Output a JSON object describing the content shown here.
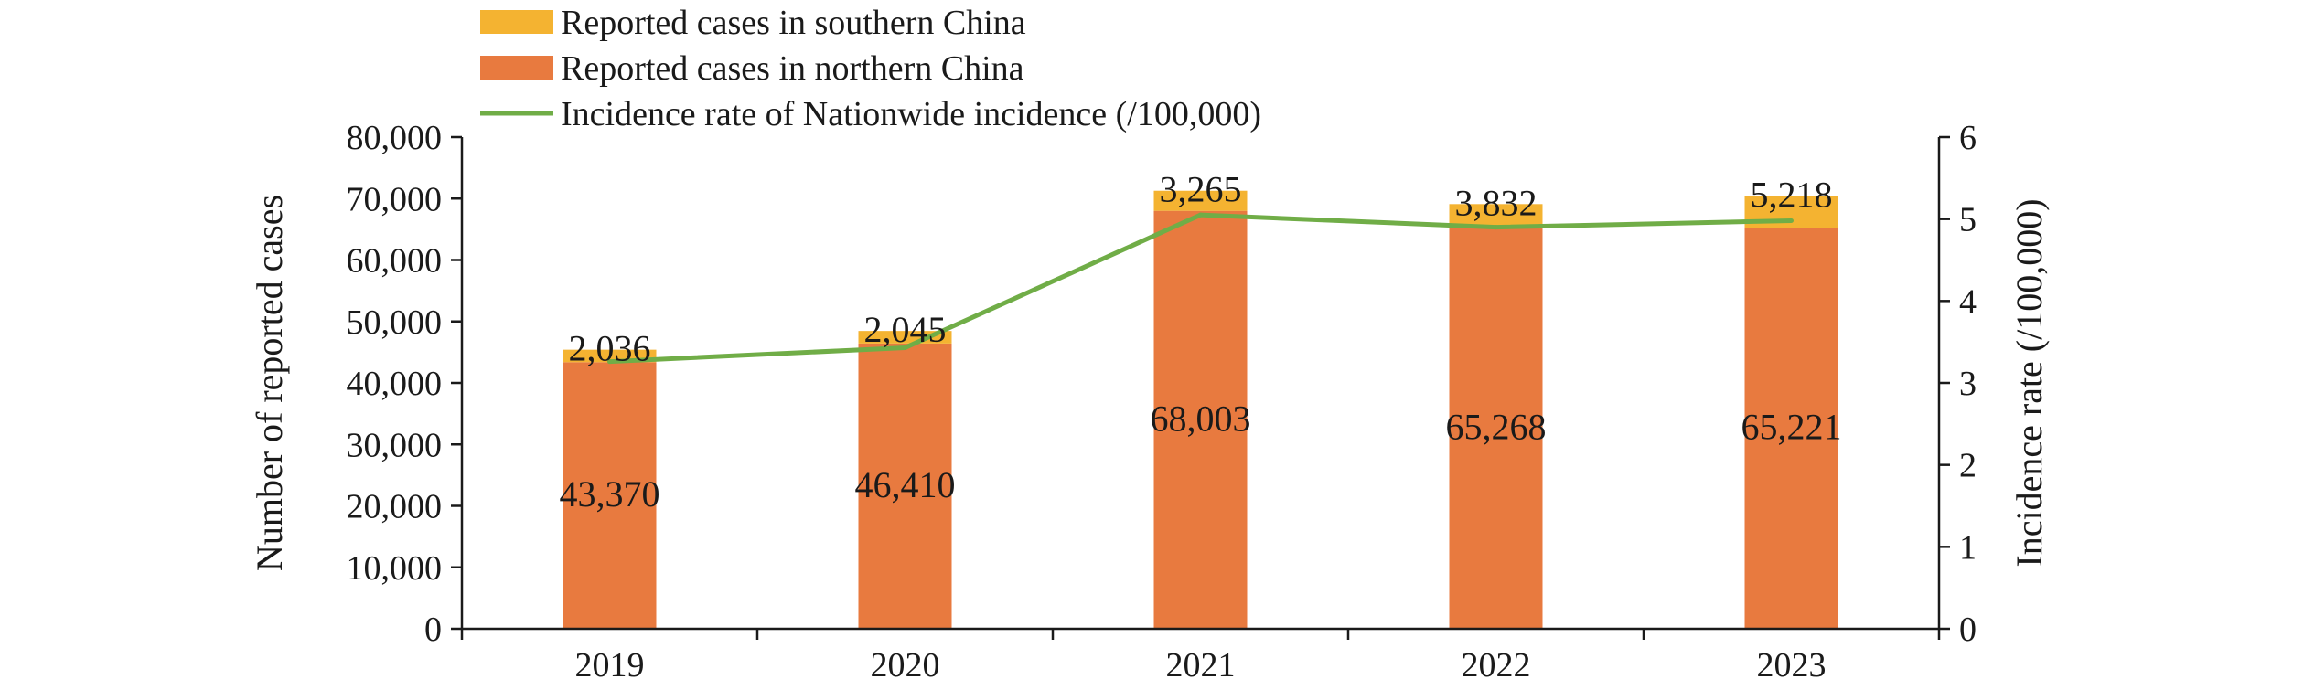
{
  "chart_data": {
    "type": "bar",
    "stacked": true,
    "categories": [
      "2019",
      "2020",
      "2021",
      "2022",
      "2023"
    ],
    "series": [
      {
        "name": "Reported cases in northern China",
        "kind": "bar",
        "axis": "left",
        "color": "#E87A3F",
        "values": [
          43370,
          46410,
          68003,
          65268,
          65221
        ],
        "labels": [
          "43,370",
          "46,410",
          "68,003",
          "65,268",
          "65,221"
        ]
      },
      {
        "name": "Reported cases in southern China",
        "kind": "bar",
        "axis": "left",
        "color": "#F4B331",
        "values": [
          2036,
          2045,
          3265,
          3832,
          5218
        ],
        "labels": [
          "2,036",
          "2,045",
          "3,265",
          "3,832",
          "5,218"
        ]
      },
      {
        "name": "Incidence rate of Nationwide incidence (/100,000)",
        "kind": "line",
        "axis": "right",
        "color": "#70AD47",
        "values": [
          3.26,
          3.43,
          5.05,
          4.9,
          4.98
        ]
      }
    ],
    "ylabel": "Number of reported cases",
    "y2label": "Incidence rate (/100,000)",
    "ylim": [
      0,
      80000
    ],
    "y2lim": [
      0,
      6
    ],
    "yticks": [
      "0",
      "10,000",
      "20,000",
      "30,000",
      "40,000",
      "50,000",
      "60,000",
      "70,000",
      "80,000"
    ],
    "y2ticks": [
      "0",
      "1",
      "2",
      "3",
      "4",
      "5",
      "6"
    ],
    "legend": "top-left",
    "grid": false
  }
}
